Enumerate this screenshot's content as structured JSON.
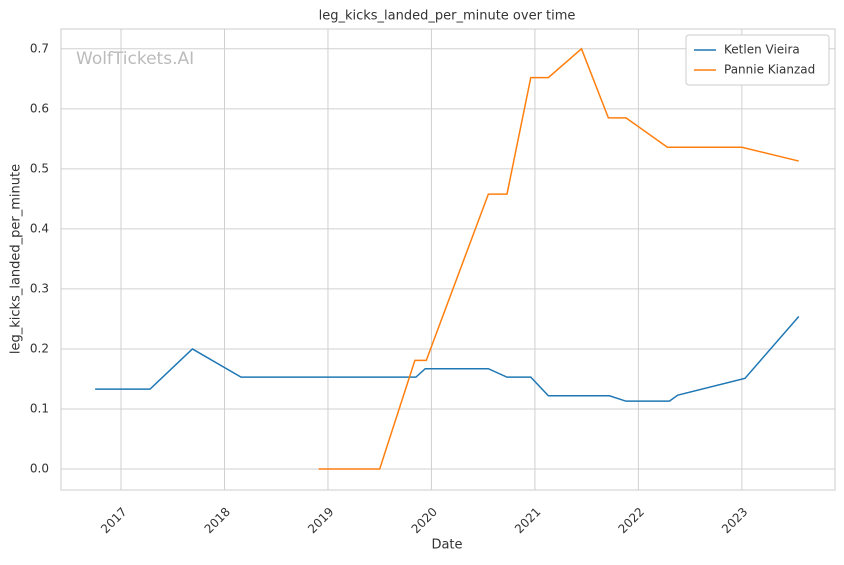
{
  "chart_data": {
    "type": "line",
    "title": "leg_kicks_landed_per_minute over time",
    "xlabel": "Date",
    "ylabel": "leg_kicks_landed_per_minute",
    "watermark": "WolfTickets.AI",
    "series": [
      {
        "name": "Ketlen Vieira",
        "color": "#1f77b4",
        "x": [
          2016.75,
          2017.28,
          2017.69,
          2018.16,
          2019.85,
          2019.94,
          2020.55,
          2020.73,
          2020.96,
          2021.13,
          2021.72,
          2021.88,
          2022.3,
          2022.38,
          2023.03,
          2023.55
        ],
        "values": [
          0.133,
          0.133,
          0.2,
          0.153,
          0.153,
          0.167,
          0.167,
          0.153,
          0.153,
          0.122,
          0.122,
          0.113,
          0.113,
          0.123,
          0.151,
          0.254
        ]
      },
      {
        "name": "Pannie Kianzad",
        "color": "#ff7f0e",
        "x": [
          2018.91,
          2019.5,
          2019.84,
          2019.95,
          2020.55,
          2020.73,
          2020.96,
          2021.13,
          2021.45,
          2021.71,
          2021.88,
          2022.28,
          2023.0,
          2023.55
        ],
        "values": [
          0,
          0,
          0.181,
          0.181,
          0.458,
          0.458,
          0.652,
          0.652,
          0.7,
          0.585,
          0.585,
          0.536,
          0.536,
          0.513
        ]
      }
    ],
    "xlim": [
      2016.42,
      2023.9
    ],
    "xticks": [
      2017,
      2018,
      2019,
      2020,
      2021,
      2022,
      2023
    ],
    "ylim": [
      -0.035,
      0.733
    ],
    "yticks": [
      {
        "value": 0,
        "label": "0.0"
      },
      0.1,
      0.2,
      0.3,
      0.4,
      0.5,
      0.6,
      0.7
    ],
    "grid": true,
    "legend": "upper right"
  }
}
